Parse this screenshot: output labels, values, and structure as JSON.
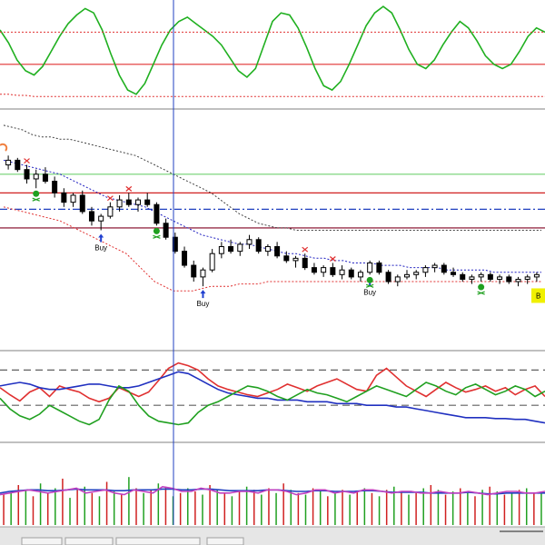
{
  "chart_data": [
    {
      "type": "line",
      "panel": "oscillator",
      "ylim": [
        0,
        100
      ],
      "grid": false,
      "levels": [
        {
          "value": 40,
          "color": "#e03030",
          "style": "solid"
        }
      ],
      "series": [
        {
          "color": "#20b020",
          "style": "solid",
          "values": [
            72,
            60,
            44,
            34,
            30,
            38,
            52,
            66,
            78,
            86,
            92,
            88,
            72,
            50,
            30,
            16,
            12,
            22,
            40,
            58,
            72,
            80,
            84,
            78,
            72,
            66,
            58,
            46,
            34,
            28,
            36,
            58,
            80,
            88,
            86,
            74,
            56,
            36,
            20,
            16,
            24,
            40,
            58,
            76,
            88,
            94,
            88,
            72,
            54,
            40,
            36,
            44,
            58,
            70,
            80,
            74,
            62,
            48,
            40,
            36,
            40,
            52,
            66,
            74,
            70
          ]
        },
        {
          "color": "#e03030",
          "style": "dotted",
          "values": [
            12,
            12,
            11,
            11,
            10,
            10,
            10,
            10,
            10,
            10,
            10,
            10,
            10,
            10,
            10,
            10,
            10,
            10,
            10,
            10,
            10,
            10,
            10,
            10,
            10,
            10,
            10,
            10,
            10,
            10,
            10,
            10,
            10,
            10,
            10,
            10,
            10,
            10,
            10,
            10,
            10,
            10,
            10,
            10,
            10,
            10,
            10,
            10,
            10,
            10,
            10,
            10,
            10,
            10,
            10,
            10,
            10,
            10,
            10,
            10,
            10,
            10,
            10,
            10,
            10
          ]
        },
        {
          "color": "#e03030",
          "style": "dotted",
          "values": [
            70,
            70,
            70,
            70,
            70,
            70,
            70,
            70,
            70,
            70,
            70,
            70,
            70,
            70,
            70,
            70,
            70,
            70,
            70,
            70,
            70,
            70,
            70,
            70,
            70,
            70,
            70,
            70,
            70,
            70,
            70,
            70,
            70,
            70,
            70,
            70,
            70,
            70,
            70,
            70,
            70,
            70,
            70,
            70,
            70,
            70,
            70,
            70,
            70,
            70,
            70,
            70,
            70,
            70,
            70,
            70,
            70,
            70,
            70,
            70,
            70,
            70,
            70,
            70,
            70
          ]
        }
      ]
    },
    {
      "type": "candlestick",
      "panel": "price",
      "ylim": [
        0,
        100
      ],
      "grid": false,
      "candles": [
        {
          "o": 78,
          "h": 82,
          "l": 76,
          "c": 80
        },
        {
          "o": 80,
          "h": 81,
          "l": 75,
          "c": 76
        },
        {
          "o": 76,
          "h": 78,
          "l": 70,
          "c": 72
        },
        {
          "o": 72,
          "h": 76,
          "l": 68,
          "c": 74
        },
        {
          "o": 74,
          "h": 77,
          "l": 70,
          "c": 71
        },
        {
          "o": 71,
          "h": 73,
          "l": 64,
          "c": 66
        },
        {
          "o": 66,
          "h": 68,
          "l": 60,
          "c": 62
        },
        {
          "o": 62,
          "h": 66,
          "l": 60,
          "c": 65
        },
        {
          "o": 65,
          "h": 67,
          "l": 57,
          "c": 58
        },
        {
          "o": 58,
          "h": 60,
          "l": 52,
          "c": 54
        },
        {
          "o": 54,
          "h": 57,
          "l": 50,
          "c": 56
        },
        {
          "o": 56,
          "h": 62,
          "l": 55,
          "c": 60
        },
        {
          "o": 60,
          "h": 65,
          "l": 58,
          "c": 63
        },
        {
          "o": 63,
          "h": 66,
          "l": 60,
          "c": 61
        },
        {
          "o": 61,
          "h": 64,
          "l": 58,
          "c": 63
        },
        {
          "o": 63,
          "h": 66,
          "l": 60,
          "c": 61
        },
        {
          "o": 61,
          "h": 62,
          "l": 52,
          "c": 53
        },
        {
          "o": 53,
          "h": 55,
          "l": 46,
          "c": 47
        },
        {
          "o": 47,
          "h": 49,
          "l": 40,
          "c": 41
        },
        {
          "o": 41,
          "h": 43,
          "l": 34,
          "c": 35
        },
        {
          "o": 35,
          "h": 37,
          "l": 28,
          "c": 30
        },
        {
          "o": 30,
          "h": 34,
          "l": 26,
          "c": 33
        },
        {
          "o": 33,
          "h": 42,
          "l": 32,
          "c": 40
        },
        {
          "o": 40,
          "h": 45,
          "l": 38,
          "c": 43
        },
        {
          "o": 43,
          "h": 46,
          "l": 40,
          "c": 41
        },
        {
          "o": 41,
          "h": 45,
          "l": 39,
          "c": 44
        },
        {
          "o": 44,
          "h": 48,
          "l": 42,
          "c": 46
        },
        {
          "o": 46,
          "h": 47,
          "l": 40,
          "c": 41
        },
        {
          "o": 41,
          "h": 44,
          "l": 39,
          "c": 43
        },
        {
          "o": 43,
          "h": 45,
          "l": 38,
          "c": 39
        },
        {
          "o": 39,
          "h": 41,
          "l": 36,
          "c": 37
        },
        {
          "o": 37,
          "h": 39,
          "l": 34,
          "c": 38
        },
        {
          "o": 38,
          "h": 40,
          "l": 33,
          "c": 34
        },
        {
          "o": 34,
          "h": 36,
          "l": 31,
          "c": 32
        },
        {
          "o": 32,
          "h": 35,
          "l": 30,
          "c": 34
        },
        {
          "o": 34,
          "h": 36,
          "l": 30,
          "c": 31
        },
        {
          "o": 31,
          "h": 35,
          "l": 29,
          "c": 33
        },
        {
          "o": 33,
          "h": 34,
          "l": 29,
          "c": 30
        },
        {
          "o": 30,
          "h": 33,
          "l": 28,
          "c": 32
        },
        {
          "o": 32,
          "h": 37,
          "l": 31,
          "c": 36
        },
        {
          "o": 36,
          "h": 37,
          "l": 31,
          "c": 32
        },
        {
          "o": 32,
          "h": 33,
          "l": 27,
          "c": 28
        },
        {
          "o": 28,
          "h": 31,
          "l": 26,
          "c": 30
        },
        {
          "o": 30,
          "h": 33,
          "l": 29,
          "c": 31
        },
        {
          "o": 31,
          "h": 33,
          "l": 29,
          "c": 32
        },
        {
          "o": 32,
          "h": 35,
          "l": 30,
          "c": 34
        },
        {
          "o": 34,
          "h": 36,
          "l": 32,
          "c": 35
        },
        {
          "o": 35,
          "h": 36,
          "l": 31,
          "c": 32
        },
        {
          "o": 32,
          "h": 34,
          "l": 30,
          "c": 31
        },
        {
          "o": 31,
          "h": 32,
          "l": 28,
          "c": 29
        },
        {
          "o": 29,
          "h": 31,
          "l": 27,
          "c": 30
        },
        {
          "o": 30,
          "h": 32,
          "l": 28,
          "c": 31
        },
        {
          "o": 31,
          "h": 32,
          "l": 28,
          "c": 29
        },
        {
          "o": 29,
          "h": 31,
          "l": 27,
          "c": 30
        },
        {
          "o": 30,
          "h": 31,
          "l": 27,
          "c": 28
        },
        {
          "o": 28,
          "h": 30,
          "l": 26,
          "c": 29
        },
        {
          "o": 29,
          "h": 31,
          "l": 27,
          "c": 30
        },
        {
          "o": 30,
          "h": 32,
          "l": 28,
          "c": 31
        }
      ],
      "levels": [
        {
          "value": 74,
          "color": "#70d070",
          "style": "solid"
        },
        {
          "value": 66,
          "color": "#d02020",
          "style": "solid"
        },
        {
          "value": 59,
          "color": "#2040c0",
          "style": "dashdot"
        },
        {
          "value": 51,
          "color": "#800020",
          "style": "solid"
        }
      ],
      "bands": [
        {
          "color": "#404040",
          "style": "dotted",
          "values": [
            95,
            94,
            93,
            91,
            90,
            90,
            89,
            89,
            88,
            87,
            86,
            85,
            84,
            83,
            82,
            80,
            78,
            76,
            74,
            72,
            70,
            68,
            66,
            63,
            60,
            57,
            55,
            53,
            52,
            51,
            51,
            50,
            50,
            50,
            50,
            50,
            50,
            50,
            50,
            50,
            50,
            50,
            50,
            50,
            50,
            50,
            50,
            50,
            50,
            50,
            50,
            50,
            50,
            50,
            50,
            50,
            50,
            50
          ]
        },
        {
          "color": "#2020c0",
          "style": "dotted",
          "values": [
            80,
            79,
            78,
            77,
            76,
            75,
            74,
            72,
            70,
            68,
            66,
            64,
            63,
            62,
            61,
            60,
            58,
            56,
            54,
            52,
            50,
            48,
            47,
            46,
            45,
            44,
            44,
            43,
            42,
            41,
            40,
            40,
            39,
            38,
            38,
            37,
            37,
            36,
            36,
            36,
            35,
            35,
            35,
            34,
            34,
            34,
            34,
            33,
            33,
            33,
            33,
            33,
            32,
            32,
            32,
            32,
            32,
            32
          ]
        },
        {
          "color": "#e03030",
          "style": "dotted",
          "values": [
            60,
            59,
            58,
            57,
            56,
            55,
            54,
            52,
            50,
            48,
            46,
            44,
            42,
            40,
            36,
            32,
            28,
            26,
            24,
            24,
            24,
            25,
            26,
            26,
            26,
            27,
            27,
            27,
            28,
            28,
            28,
            28,
            28,
            28,
            28,
            28,
            28,
            28,
            28,
            28,
            28,
            28,
            28,
            28,
            28,
            28,
            28,
            28,
            28,
            28,
            28,
            28,
            28,
            28,
            28,
            28,
            28,
            28
          ]
        }
      ],
      "annotations": [
        {
          "text": "Buy",
          "color": "#000000"
        },
        {
          "text": "Buy",
          "color": "#000000"
        },
        {
          "text": "Buy",
          "color": "#000000"
        }
      ],
      "badge": {
        "text": "B",
        "color": "#f0f000"
      }
    },
    {
      "type": "line",
      "panel": "stochastic",
      "ylim": [
        0,
        100
      ],
      "grid": false,
      "levels": [
        {
          "value": 80,
          "color": "#606060",
          "style": "dashed"
        },
        {
          "value": 40,
          "color": "#606060",
          "style": "dashed"
        }
      ],
      "series": [
        {
          "color": "#e03030",
          "values": [
            60,
            52,
            45,
            55,
            60,
            50,
            62,
            58,
            55,
            48,
            44,
            48,
            60,
            55,
            50,
            55,
            68,
            82,
            88,
            85,
            80,
            70,
            62,
            58,
            55,
            52,
            50,
            54,
            58,
            64,
            60,
            56,
            62,
            66,
            70,
            64,
            58,
            56,
            74,
            82,
            72,
            62,
            56,
            50,
            58,
            66,
            60,
            55,
            58,
            62,
            56,
            60,
            52,
            58,
            62,
            50
          ]
        },
        {
          "color": "#2030c0",
          "values": [
            62,
            64,
            66,
            64,
            60,
            58,
            58,
            60,
            62,
            64,
            64,
            62,
            60,
            60,
            62,
            66,
            70,
            74,
            78,
            76,
            70,
            64,
            58,
            54,
            52,
            50,
            48,
            48,
            46,
            46,
            46,
            44,
            44,
            44,
            42,
            42,
            42,
            40,
            40,
            40,
            38,
            38,
            36,
            34,
            32,
            30,
            28,
            26,
            26,
            26,
            25,
            25,
            24,
            24,
            22,
            20
          ]
        },
        {
          "color": "#20a020",
          "values": [
            48,
            36,
            28,
            24,
            30,
            40,
            34,
            28,
            22,
            18,
            24,
            46,
            62,
            56,
            40,
            28,
            22,
            20,
            18,
            20,
            32,
            40,
            44,
            50,
            56,
            62,
            60,
            56,
            50,
            46,
            52,
            58,
            54,
            52,
            48,
            44,
            50,
            56,
            62,
            58,
            54,
            50,
            58,
            66,
            62,
            56,
            52,
            60,
            64,
            58,
            52,
            56,
            62,
            58,
            50,
            56
          ]
        }
      ]
    },
    {
      "type": "bar",
      "panel": "volume",
      "ylim": [
        0,
        100
      ],
      "grid": false,
      "values": [
        38,
        42,
        50,
        44,
        36,
        52,
        40,
        46,
        58,
        34,
        44,
        48,
        40,
        36,
        54,
        42,
        38,
        60,
        46,
        40,
        44,
        52,
        48,
        36,
        40,
        46,
        42,
        38,
        50,
        44,
        40,
        36,
        42,
        48,
        44,
        38,
        46,
        40,
        52,
        44,
        40,
        38,
        46,
        42,
        36,
        40,
        44,
        38,
        42,
        46,
        40,
        36,
        44,
        48,
        42,
        38,
        40,
        46,
        50,
        44,
        38,
        42,
        46,
        40,
        36,
        44,
        48,
        42,
        38,
        40,
        44,
        46,
        40,
        42
      ],
      "colors": [
        "#d02020",
        "#20a020"
      ],
      "series": [
        {
          "color": "#2040c0",
          "values": [
            40,
            42,
            43,
            44,
            44,
            43,
            43,
            44,
            45,
            44,
            44,
            44,
            43,
            43,
            44,
            44,
            44,
            45,
            45,
            44,
            44,
            45,
            45,
            44,
            43,
            43,
            43,
            43,
            44,
            44,
            43,
            42,
            42,
            43,
            43,
            42,
            42,
            42,
            43,
            43,
            42,
            41,
            41,
            41,
            41,
            40,
            40,
            40,
            40,
            41,
            40,
            39,
            39,
            40,
            40,
            40,
            40,
            40
          ]
        },
        {
          "color": "#c040c0",
          "values": [
            38,
            40,
            42,
            44,
            42,
            40,
            42,
            44,
            46,
            40,
            42,
            44,
            40,
            38,
            44,
            42,
            40,
            48,
            46,
            42,
            42,
            46,
            44,
            40,
            40,
            42,
            42,
            40,
            44,
            44,
            42,
            38,
            40,
            44,
            44,
            40,
            42,
            40,
            44,
            44,
            42,
            40,
            42,
            42,
            40,
            40,
            42,
            40,
            40,
            42,
            40,
            38,
            40,
            42,
            42,
            40,
            40,
            42
          ]
        }
      ]
    }
  ],
  "toolbar": {
    "tabs": [
      "",
      "",
      "",
      "",
      ""
    ]
  }
}
